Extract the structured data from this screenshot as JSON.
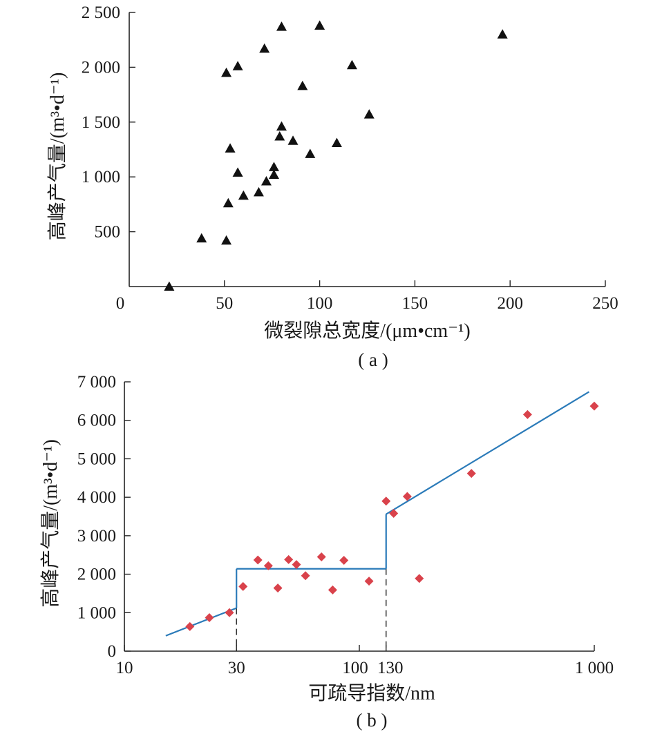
{
  "chart_data": [
    {
      "type": "scatter",
      "panel_label": "( a )",
      "xlabel": "微裂隙总宽度/(μm•cm⁻¹)",
      "ylabel": "高峰产气量/(m³•d⁻¹)",
      "xlim": [
        0,
        250
      ],
      "ylim": [
        0,
        2500
      ],
      "x_origin_label": "0",
      "x_ticks": [
        50,
        100,
        150,
        200,
        250
      ],
      "x_tick_labels": [
        "50",
        "100",
        "150",
        "200",
        "250"
      ],
      "y_ticks": [
        500,
        1000,
        1500,
        2000,
        2500
      ],
      "y_tick_labels": [
        "500",
        "1 000",
        "1 500",
        "2 000",
        "2 500"
      ],
      "marker": "triangle",
      "marker_color": "#111111",
      "points": [
        {
          "x": 21,
          "y": 0
        },
        {
          "x": 38,
          "y": 440
        },
        {
          "x": 51,
          "y": 420
        },
        {
          "x": 52,
          "y": 760
        },
        {
          "x": 51,
          "y": 1950
        },
        {
          "x": 53,
          "y": 1260
        },
        {
          "x": 57,
          "y": 2010
        },
        {
          "x": 57,
          "y": 1040
        },
        {
          "x": 60,
          "y": 830
        },
        {
          "x": 68,
          "y": 860
        },
        {
          "x": 71,
          "y": 2170
        },
        {
          "x": 72,
          "y": 960
        },
        {
          "x": 76,
          "y": 1020
        },
        {
          "x": 76,
          "y": 1090
        },
        {
          "x": 79,
          "y": 1370
        },
        {
          "x": 80,
          "y": 1460
        },
        {
          "x": 80,
          "y": 2370
        },
        {
          "x": 86,
          "y": 1330
        },
        {
          "x": 91,
          "y": 1830
        },
        {
          "x": 95,
          "y": 1210
        },
        {
          "x": 100,
          "y": 2380
        },
        {
          "x": 109,
          "y": 1310
        },
        {
          "x": 117,
          "y": 2020
        },
        {
          "x": 126,
          "y": 1570
        },
        {
          "x": 196,
          "y": 2300
        }
      ]
    },
    {
      "type": "scatter",
      "panel_label": "( b )",
      "xlabel": "可疏导指数/nm",
      "ylabel": "高峰产气量/(m³•d⁻¹)",
      "xscale": "log",
      "xlim": [
        10,
        1000
      ],
      "ylim": [
        0,
        7000
      ],
      "x_ticks": [
        10,
        30,
        100,
        130,
        1000
      ],
      "x_tick_labels": [
        "10",
        "30",
        "100",
        "130",
        "1 000"
      ],
      "y_ticks": [
        0,
        1000,
        2000,
        3000,
        4000,
        5000,
        6000,
        7000
      ],
      "y_tick_labels": [
        "0",
        "1 000",
        "2 000",
        "3 000",
        "4 000",
        "5 000",
        "6 000",
        "7 000"
      ],
      "marker": "diamond",
      "marker_color": "#d9424b",
      "line_color": "#2b7bb9",
      "points": [
        {
          "x": 19,
          "y": 640
        },
        {
          "x": 23,
          "y": 870
        },
        {
          "x": 28,
          "y": 1000
        },
        {
          "x": 32,
          "y": 1680
        },
        {
          "x": 37,
          "y": 2370
        },
        {
          "x": 41,
          "y": 2220
        },
        {
          "x": 45,
          "y": 1640
        },
        {
          "x": 50,
          "y": 2380
        },
        {
          "x": 54,
          "y": 2250
        },
        {
          "x": 59,
          "y": 1960
        },
        {
          "x": 69,
          "y": 2450
        },
        {
          "x": 77,
          "y": 1590
        },
        {
          "x": 86,
          "y": 2360
        },
        {
          "x": 110,
          "y": 1820
        },
        {
          "x": 130,
          "y": 3900
        },
        {
          "x": 140,
          "y": 3580
        },
        {
          "x": 160,
          "y": 4020
        },
        {
          "x": 180,
          "y": 1890
        },
        {
          "x": 300,
          "y": 4620
        },
        {
          "x": 520,
          "y": 6150
        },
        {
          "x": 1000,
          "y": 6370
        }
      ],
      "fit_segments": [
        [
          {
            "x": 15,
            "y": 400
          },
          {
            "x": 30,
            "y": 1120
          }
        ],
        [
          {
            "x": 30,
            "y": 2140
          },
          {
            "x": 130,
            "y": 2140
          }
        ],
        [
          {
            "x": 130,
            "y": 3560
          },
          {
            "x": 950,
            "y": 6740
          }
        ]
      ],
      "fit_jumps": [
        [
          {
            "x": 30,
            "y": 1120
          },
          {
            "x": 30,
            "y": 2140
          }
        ],
        [
          {
            "x": 130,
            "y": 2140
          },
          {
            "x": 130,
            "y": 3560
          }
        ]
      ],
      "reference_lines_x": [
        30,
        130
      ]
    }
  ]
}
